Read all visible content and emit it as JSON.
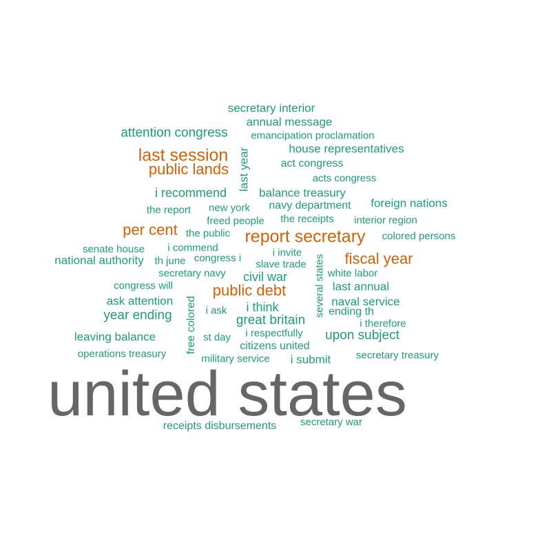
{
  "word_cloud": {
    "colors": {
      "most_frequent": "#666666",
      "frequent": "#d95f02",
      "common": "#1b9e77"
    },
    "words": [
      {
        "id": "united-states",
        "text": "united states",
        "color_group": "most_frequent"
      },
      {
        "id": "report-secretary",
        "text": "report secretary",
        "color_group": "frequent"
      },
      {
        "id": "last-session",
        "text": "last session",
        "color_group": "frequent"
      },
      {
        "id": "public-lands",
        "text": "public lands",
        "color_group": "frequent"
      },
      {
        "id": "per-cent",
        "text": "per cent",
        "color_group": "frequent"
      },
      {
        "id": "fiscal-year",
        "text": "fiscal year",
        "color_group": "frequent"
      },
      {
        "id": "public-debt",
        "text": "public debt",
        "color_group": "frequent"
      },
      {
        "id": "secretary-interior",
        "text": "secretary interior",
        "color_group": "common"
      },
      {
        "id": "annual-message",
        "text": "annual message",
        "color_group": "common"
      },
      {
        "id": "attention-congress",
        "text": "attention congress",
        "color_group": "common"
      },
      {
        "id": "emancipation-proclamation",
        "text": "emancipation proclamation",
        "color_group": "common"
      },
      {
        "id": "house-representatives",
        "text": "house representatives",
        "color_group": "common"
      },
      {
        "id": "last-year",
        "text": "last year",
        "color_group": "common"
      },
      {
        "id": "act-congress",
        "text": "act congress",
        "color_group": "common"
      },
      {
        "id": "acts-congress",
        "text": "acts congress",
        "color_group": "common"
      },
      {
        "id": "i-recommend",
        "text": "i recommend",
        "color_group": "common"
      },
      {
        "id": "balance-treasury",
        "text": "balance treasury",
        "color_group": "common"
      },
      {
        "id": "foreign-nations",
        "text": "foreign nations",
        "color_group": "common"
      },
      {
        "id": "the-report",
        "text": "the report",
        "color_group": "common"
      },
      {
        "id": "new-york",
        "text": "new york",
        "color_group": "common"
      },
      {
        "id": "navy-department",
        "text": "navy department",
        "color_group": "common"
      },
      {
        "id": "freed-people",
        "text": "freed people",
        "color_group": "common"
      },
      {
        "id": "the-receipts",
        "text": "the receipts",
        "color_group": "common"
      },
      {
        "id": "interior-region",
        "text": "interior region",
        "color_group": "common"
      },
      {
        "id": "the-public",
        "text": "the public",
        "color_group": "common"
      },
      {
        "id": "colored-persons",
        "text": "colored persons",
        "color_group": "common"
      },
      {
        "id": "senate-house",
        "text": "senate house",
        "color_group": "common"
      },
      {
        "id": "i-commend",
        "text": "i commend",
        "color_group": "common"
      },
      {
        "id": "i-invite",
        "text": "i invite",
        "color_group": "common"
      },
      {
        "id": "national-authority",
        "text": "national authority",
        "color_group": "common"
      },
      {
        "id": "th-june",
        "text": "th june",
        "color_group": "common"
      },
      {
        "id": "congress-i",
        "text": "congress i",
        "color_group": "common"
      },
      {
        "id": "slave-trade",
        "text": "slave trade",
        "color_group": "common"
      },
      {
        "id": "several-states",
        "text": "several states",
        "color_group": "common"
      },
      {
        "id": "secretary-navy",
        "text": "secretary navy",
        "color_group": "common"
      },
      {
        "id": "civil-war",
        "text": "civil war",
        "color_group": "common"
      },
      {
        "id": "white-labor",
        "text": "white labor",
        "color_group": "common"
      },
      {
        "id": "congress-will",
        "text": "congress will",
        "color_group": "common"
      },
      {
        "id": "last-annual",
        "text": "last annual",
        "color_group": "common"
      },
      {
        "id": "ask-attention",
        "text": "ask attention",
        "color_group": "common"
      },
      {
        "id": "free-colored",
        "text": "free colored",
        "color_group": "common"
      },
      {
        "id": "naval-service",
        "text": "naval service",
        "color_group": "common"
      },
      {
        "id": "i-think",
        "text": "i think",
        "color_group": "common"
      },
      {
        "id": "i-ask",
        "text": "i ask",
        "color_group": "common"
      },
      {
        "id": "ending-th",
        "text": "ending th",
        "color_group": "common"
      },
      {
        "id": "year-ending",
        "text": "year ending",
        "color_group": "common"
      },
      {
        "id": "great-britain",
        "text": "great britain",
        "color_group": "common"
      },
      {
        "id": "i-therefore",
        "text": "i therefore",
        "color_group": "common"
      },
      {
        "id": "i-respectfully",
        "text": "i respectfully",
        "color_group": "common"
      },
      {
        "id": "leaving-balance",
        "text": "leaving balance",
        "color_group": "common"
      },
      {
        "id": "st-day",
        "text": "st day",
        "color_group": "common"
      },
      {
        "id": "upon-subject",
        "text": "upon subject",
        "color_group": "common"
      },
      {
        "id": "citizens-united",
        "text": "citizens united",
        "color_group": "common"
      },
      {
        "id": "operations-treasury",
        "text": "operations treasury",
        "color_group": "common"
      },
      {
        "id": "military-service",
        "text": "military service",
        "color_group": "common"
      },
      {
        "id": "i-submit",
        "text": "i submit",
        "color_group": "common"
      },
      {
        "id": "secretary-treasury",
        "text": "secretary treasury",
        "color_group": "common"
      },
      {
        "id": "receipts-disbursements",
        "text": "receipts disbursements",
        "color_group": "common"
      },
      {
        "id": "secretary-war",
        "text": "secretary war",
        "color_group": "common"
      }
    ]
  }
}
